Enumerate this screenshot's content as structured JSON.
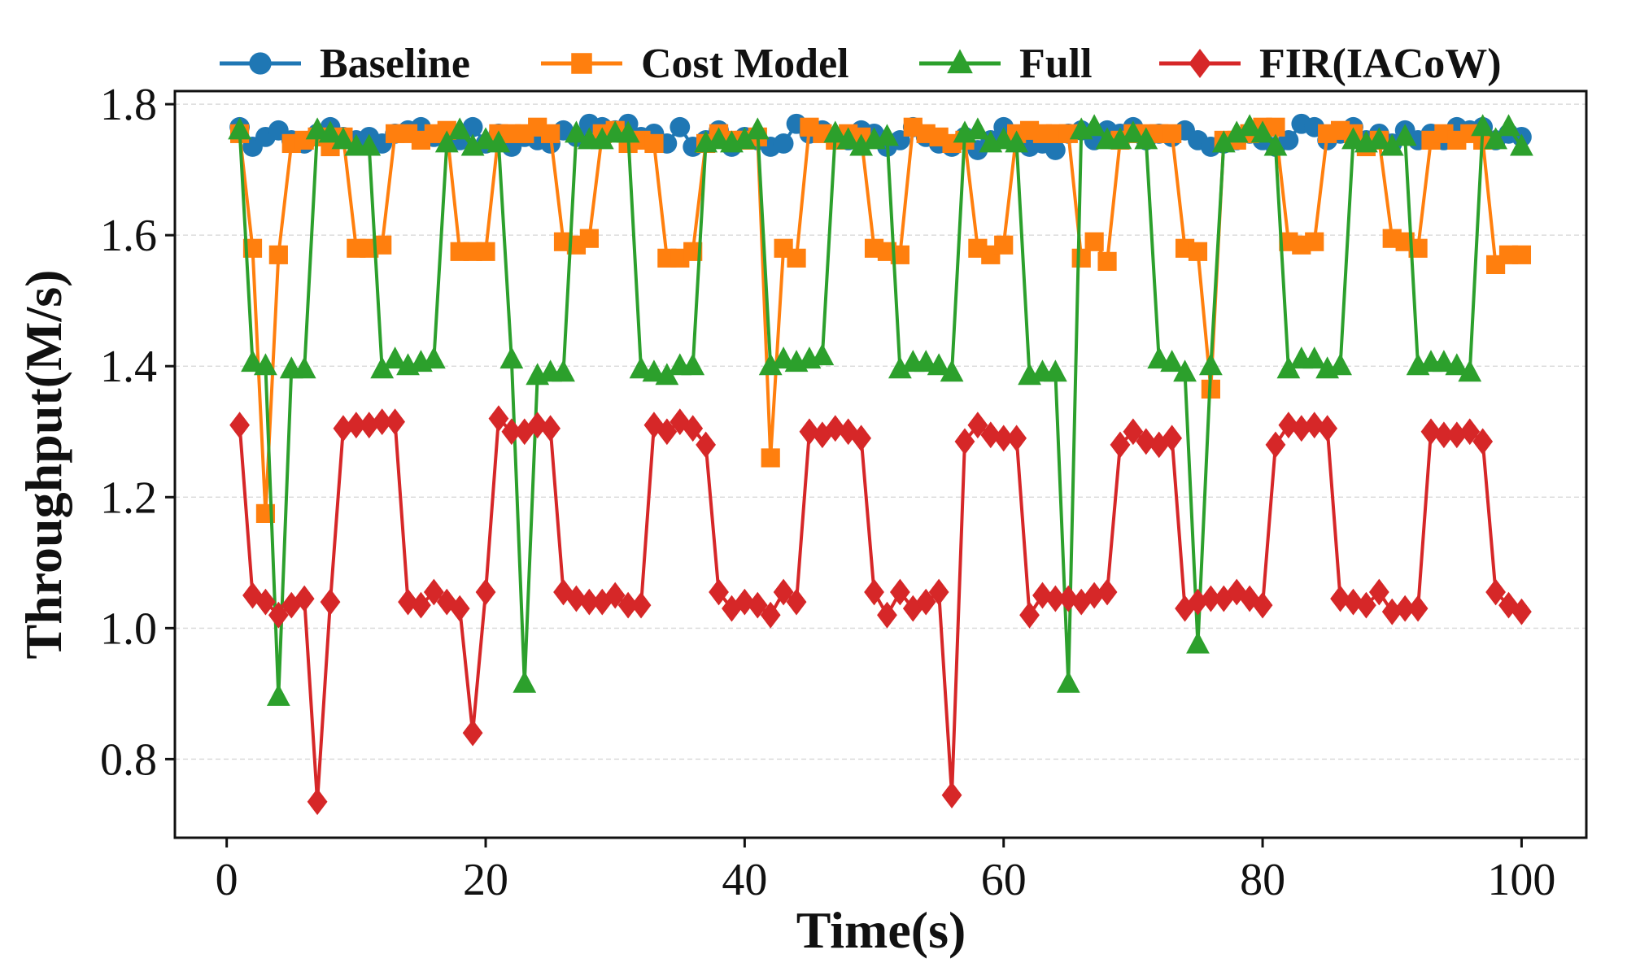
{
  "chart_data": {
    "type": "line",
    "xlabel": "Time(s)",
    "ylabel": "Throughput(M/s)",
    "xlim": [
      -4,
      105
    ],
    "ylim": [
      0.68,
      1.82
    ],
    "xticks": [
      0,
      20,
      40,
      60,
      80,
      100
    ],
    "yticks": [
      0.8,
      1.0,
      1.2,
      1.4,
      1.6,
      1.8
    ],
    "xtick_labels": [
      "0",
      "20",
      "40",
      "60",
      "80",
      "100"
    ],
    "ytick_labels": [
      "0.8",
      "1.0",
      "1.2",
      "1.4",
      "1.6",
      "1.8"
    ],
    "grid": true,
    "legend_position": "top",
    "series": [
      {
        "name": "Baseline",
        "color": "#1f77b4",
        "marker": "circle",
        "x": [
          1,
          2,
          3,
          4,
          5,
          6,
          7,
          8,
          9,
          10,
          11,
          12,
          13,
          14,
          15,
          16,
          17,
          18,
          19,
          20,
          21,
          22,
          23,
          24,
          25,
          26,
          27,
          28,
          29,
          30,
          31,
          32,
          33,
          34,
          35,
          36,
          37,
          38,
          39,
          40,
          41,
          42,
          43,
          44,
          45,
          46,
          47,
          48,
          49,
          50,
          51,
          52,
          53,
          54,
          55,
          56,
          57,
          58,
          59,
          60,
          61,
          62,
          63,
          64,
          65,
          66,
          67,
          68,
          69,
          70,
          71,
          72,
          73,
          74,
          75,
          76,
          77,
          78,
          79,
          80,
          81,
          82,
          83,
          84,
          85,
          86,
          87,
          88,
          89,
          90,
          91,
          92,
          93,
          94,
          95,
          96,
          97,
          98,
          99,
          100
        ],
        "y": [
          1.765,
          1.735,
          1.75,
          1.76,
          1.745,
          1.74,
          1.755,
          1.765,
          1.75,
          1.745,
          1.75,
          1.74,
          1.755,
          1.76,
          1.765,
          1.75,
          1.755,
          1.745,
          1.765,
          1.74,
          1.755,
          1.735,
          1.75,
          1.745,
          1.74,
          1.76,
          1.75,
          1.77,
          1.765,
          1.76,
          1.77,
          1.75,
          1.755,
          1.74,
          1.765,
          1.735,
          1.745,
          1.76,
          1.735,
          1.75,
          1.745,
          1.735,
          1.74,
          1.77,
          1.755,
          1.76,
          1.75,
          1.745,
          1.76,
          1.755,
          1.735,
          1.745,
          1.765,
          1.75,
          1.74,
          1.735,
          1.75,
          1.73,
          1.745,
          1.765,
          1.745,
          1.735,
          1.74,
          1.73,
          1.755,
          1.76,
          1.745,
          1.76,
          1.755,
          1.765,
          1.745,
          1.755,
          1.75,
          1.76,
          1.745,
          1.735,
          1.74,
          1.745,
          1.755,
          1.745,
          1.735,
          1.745,
          1.77,
          1.765,
          1.745,
          1.755,
          1.765,
          1.745,
          1.755,
          1.74,
          1.76,
          1.745,
          1.755,
          1.745,
          1.765,
          1.76,
          1.765,
          1.745,
          1.755,
          1.75
        ]
      },
      {
        "name": "Cost Model",
        "color": "#ff7f0e",
        "marker": "square",
        "x": [
          1,
          2,
          3,
          4,
          5,
          6,
          7,
          8,
          9,
          10,
          11,
          12,
          13,
          14,
          15,
          16,
          17,
          18,
          19,
          20,
          21,
          22,
          23,
          24,
          25,
          26,
          27,
          28,
          29,
          30,
          31,
          32,
          33,
          34,
          35,
          36,
          37,
          38,
          39,
          40,
          41,
          42,
          43,
          44,
          45,
          46,
          47,
          48,
          49,
          50,
          51,
          52,
          53,
          54,
          55,
          56,
          57,
          58,
          59,
          60,
          61,
          62,
          63,
          64,
          65,
          66,
          67,
          68,
          69,
          70,
          71,
          72,
          73,
          74,
          75,
          76,
          77,
          78,
          79,
          80,
          81,
          82,
          83,
          84,
          85,
          86,
          87,
          88,
          89,
          90,
          91,
          92,
          93,
          94,
          95,
          96,
          97,
          98,
          99,
          100
        ],
        "y": [
          1.755,
          1.58,
          1.175,
          1.57,
          1.74,
          1.745,
          1.75,
          1.735,
          1.75,
          1.58,
          1.58,
          1.585,
          1.755,
          1.755,
          1.745,
          1.755,
          1.76,
          1.575,
          1.575,
          1.575,
          1.755,
          1.755,
          1.755,
          1.765,
          1.755,
          1.59,
          1.585,
          1.595,
          1.755,
          1.76,
          1.74,
          1.745,
          1.74,
          1.565,
          1.565,
          1.575,
          1.74,
          1.755,
          1.745,
          1.745,
          1.75,
          1.26,
          1.58,
          1.565,
          1.765,
          1.755,
          1.745,
          1.755,
          1.75,
          1.58,
          1.575,
          1.57,
          1.765,
          1.755,
          1.75,
          1.74,
          1.745,
          1.58,
          1.57,
          1.585,
          1.755,
          1.76,
          1.755,
          1.755,
          1.755,
          1.565,
          1.59,
          1.56,
          1.745,
          1.755,
          1.755,
          1.755,
          1.755,
          1.58,
          1.575,
          1.365,
          1.745,
          1.745,
          1.755,
          1.765,
          1.765,
          1.59,
          1.585,
          1.59,
          1.755,
          1.76,
          1.755,
          1.735,
          1.745,
          1.595,
          1.59,
          1.58,
          1.745,
          1.755,
          1.745,
          1.755,
          1.745,
          1.555,
          1.57,
          1.57
        ]
      },
      {
        "name": "Full",
        "color": "#2ca02c",
        "marker": "triangle",
        "x": [
          1,
          2,
          3,
          4,
          5,
          6,
          7,
          8,
          9,
          10,
          11,
          12,
          13,
          14,
          15,
          16,
          17,
          18,
          19,
          20,
          21,
          22,
          23,
          24,
          25,
          26,
          27,
          28,
          29,
          30,
          31,
          32,
          33,
          34,
          35,
          36,
          37,
          38,
          39,
          40,
          41,
          42,
          43,
          44,
          45,
          46,
          47,
          48,
          49,
          50,
          51,
          52,
          53,
          54,
          55,
          56,
          57,
          58,
          59,
          60,
          61,
          62,
          63,
          64,
          65,
          66,
          67,
          68,
          69,
          70,
          71,
          72,
          73,
          74,
          75,
          76,
          77,
          78,
          79,
          80,
          81,
          82,
          83,
          84,
          85,
          86,
          87,
          88,
          89,
          90,
          91,
          92,
          93,
          94,
          95,
          96,
          97,
          98,
          99,
          100
        ],
        "y": [
          1.76,
          1.405,
          1.4,
          0.895,
          1.395,
          1.395,
          1.76,
          1.755,
          1.745,
          1.735,
          1.735,
          1.395,
          1.41,
          1.4,
          1.405,
          1.41,
          1.74,
          1.76,
          1.735,
          1.745,
          1.74,
          1.41,
          0.915,
          1.385,
          1.39,
          1.39,
          1.755,
          1.745,
          1.745,
          1.755,
          1.755,
          1.395,
          1.39,
          1.385,
          1.4,
          1.4,
          1.74,
          1.745,
          1.74,
          1.745,
          1.76,
          1.4,
          1.41,
          1.405,
          1.41,
          1.415,
          1.755,
          1.745,
          1.735,
          1.745,
          1.75,
          1.395,
          1.405,
          1.405,
          1.4,
          1.39,
          1.755,
          1.76,
          1.74,
          1.745,
          1.74,
          1.385,
          1.39,
          1.39,
          0.915,
          1.76,
          1.765,
          1.745,
          1.745,
          1.755,
          1.745,
          1.41,
          1.405,
          1.39,
          0.975,
          1.4,
          1.74,
          1.755,
          1.765,
          1.755,
          1.735,
          1.395,
          1.41,
          1.41,
          1.395,
          1.4,
          1.745,
          1.74,
          1.745,
          1.735,
          1.75,
          1.4,
          1.405,
          1.405,
          1.4,
          1.39,
          1.765,
          1.745,
          1.765,
          1.735
        ]
      },
      {
        "name": "FIR(IACoW)",
        "color": "#d62728",
        "marker": "diamond",
        "x": [
          1,
          2,
          3,
          4,
          5,
          6,
          7,
          8,
          9,
          10,
          11,
          12,
          13,
          14,
          15,
          16,
          17,
          18,
          19,
          20,
          21,
          22,
          23,
          24,
          25,
          26,
          27,
          28,
          29,
          30,
          31,
          32,
          33,
          34,
          35,
          36,
          37,
          38,
          39,
          40,
          41,
          42,
          43,
          44,
          45,
          46,
          47,
          48,
          49,
          50,
          51,
          52,
          53,
          54,
          55,
          56,
          57,
          58,
          59,
          60,
          61,
          62,
          63,
          64,
          65,
          66,
          67,
          68,
          69,
          70,
          71,
          72,
          73,
          74,
          75,
          76,
          77,
          78,
          79,
          80,
          81,
          82,
          83,
          84,
          85,
          86,
          87,
          88,
          89,
          90,
          91,
          92,
          93,
          94,
          95,
          96,
          97,
          98,
          99,
          100
        ],
        "y": [
          1.31,
          1.05,
          1.04,
          1.02,
          1.035,
          1.045,
          0.735,
          1.04,
          1.305,
          1.31,
          1.31,
          1.315,
          1.315,
          1.04,
          1.035,
          1.055,
          1.04,
          1.03,
          0.84,
          1.055,
          1.32,
          1.3,
          1.3,
          1.31,
          1.305,
          1.055,
          1.045,
          1.04,
          1.04,
          1.05,
          1.035,
          1.035,
          1.31,
          1.3,
          1.315,
          1.305,
          1.28,
          1.055,
          1.03,
          1.04,
          1.035,
          1.02,
          1.055,
          1.04,
          1.3,
          1.295,
          1.305,
          1.3,
          1.29,
          1.055,
          1.02,
          1.055,
          1.03,
          1.04,
          1.055,
          0.745,
          1.285,
          1.31,
          1.295,
          1.29,
          1.29,
          1.02,
          1.05,
          1.045,
          1.045,
          1.04,
          1.05,
          1.055,
          1.28,
          1.3,
          1.285,
          1.28,
          1.29,
          1.03,
          1.04,
          1.045,
          1.045,
          1.055,
          1.045,
          1.035,
          1.28,
          1.31,
          1.305,
          1.31,
          1.305,
          1.045,
          1.04,
          1.035,
          1.055,
          1.025,
          1.03,
          1.03,
          1.3,
          1.295,
          1.295,
          1.3,
          1.285,
          1.055,
          1.035,
          1.025
        ]
      }
    ]
  }
}
